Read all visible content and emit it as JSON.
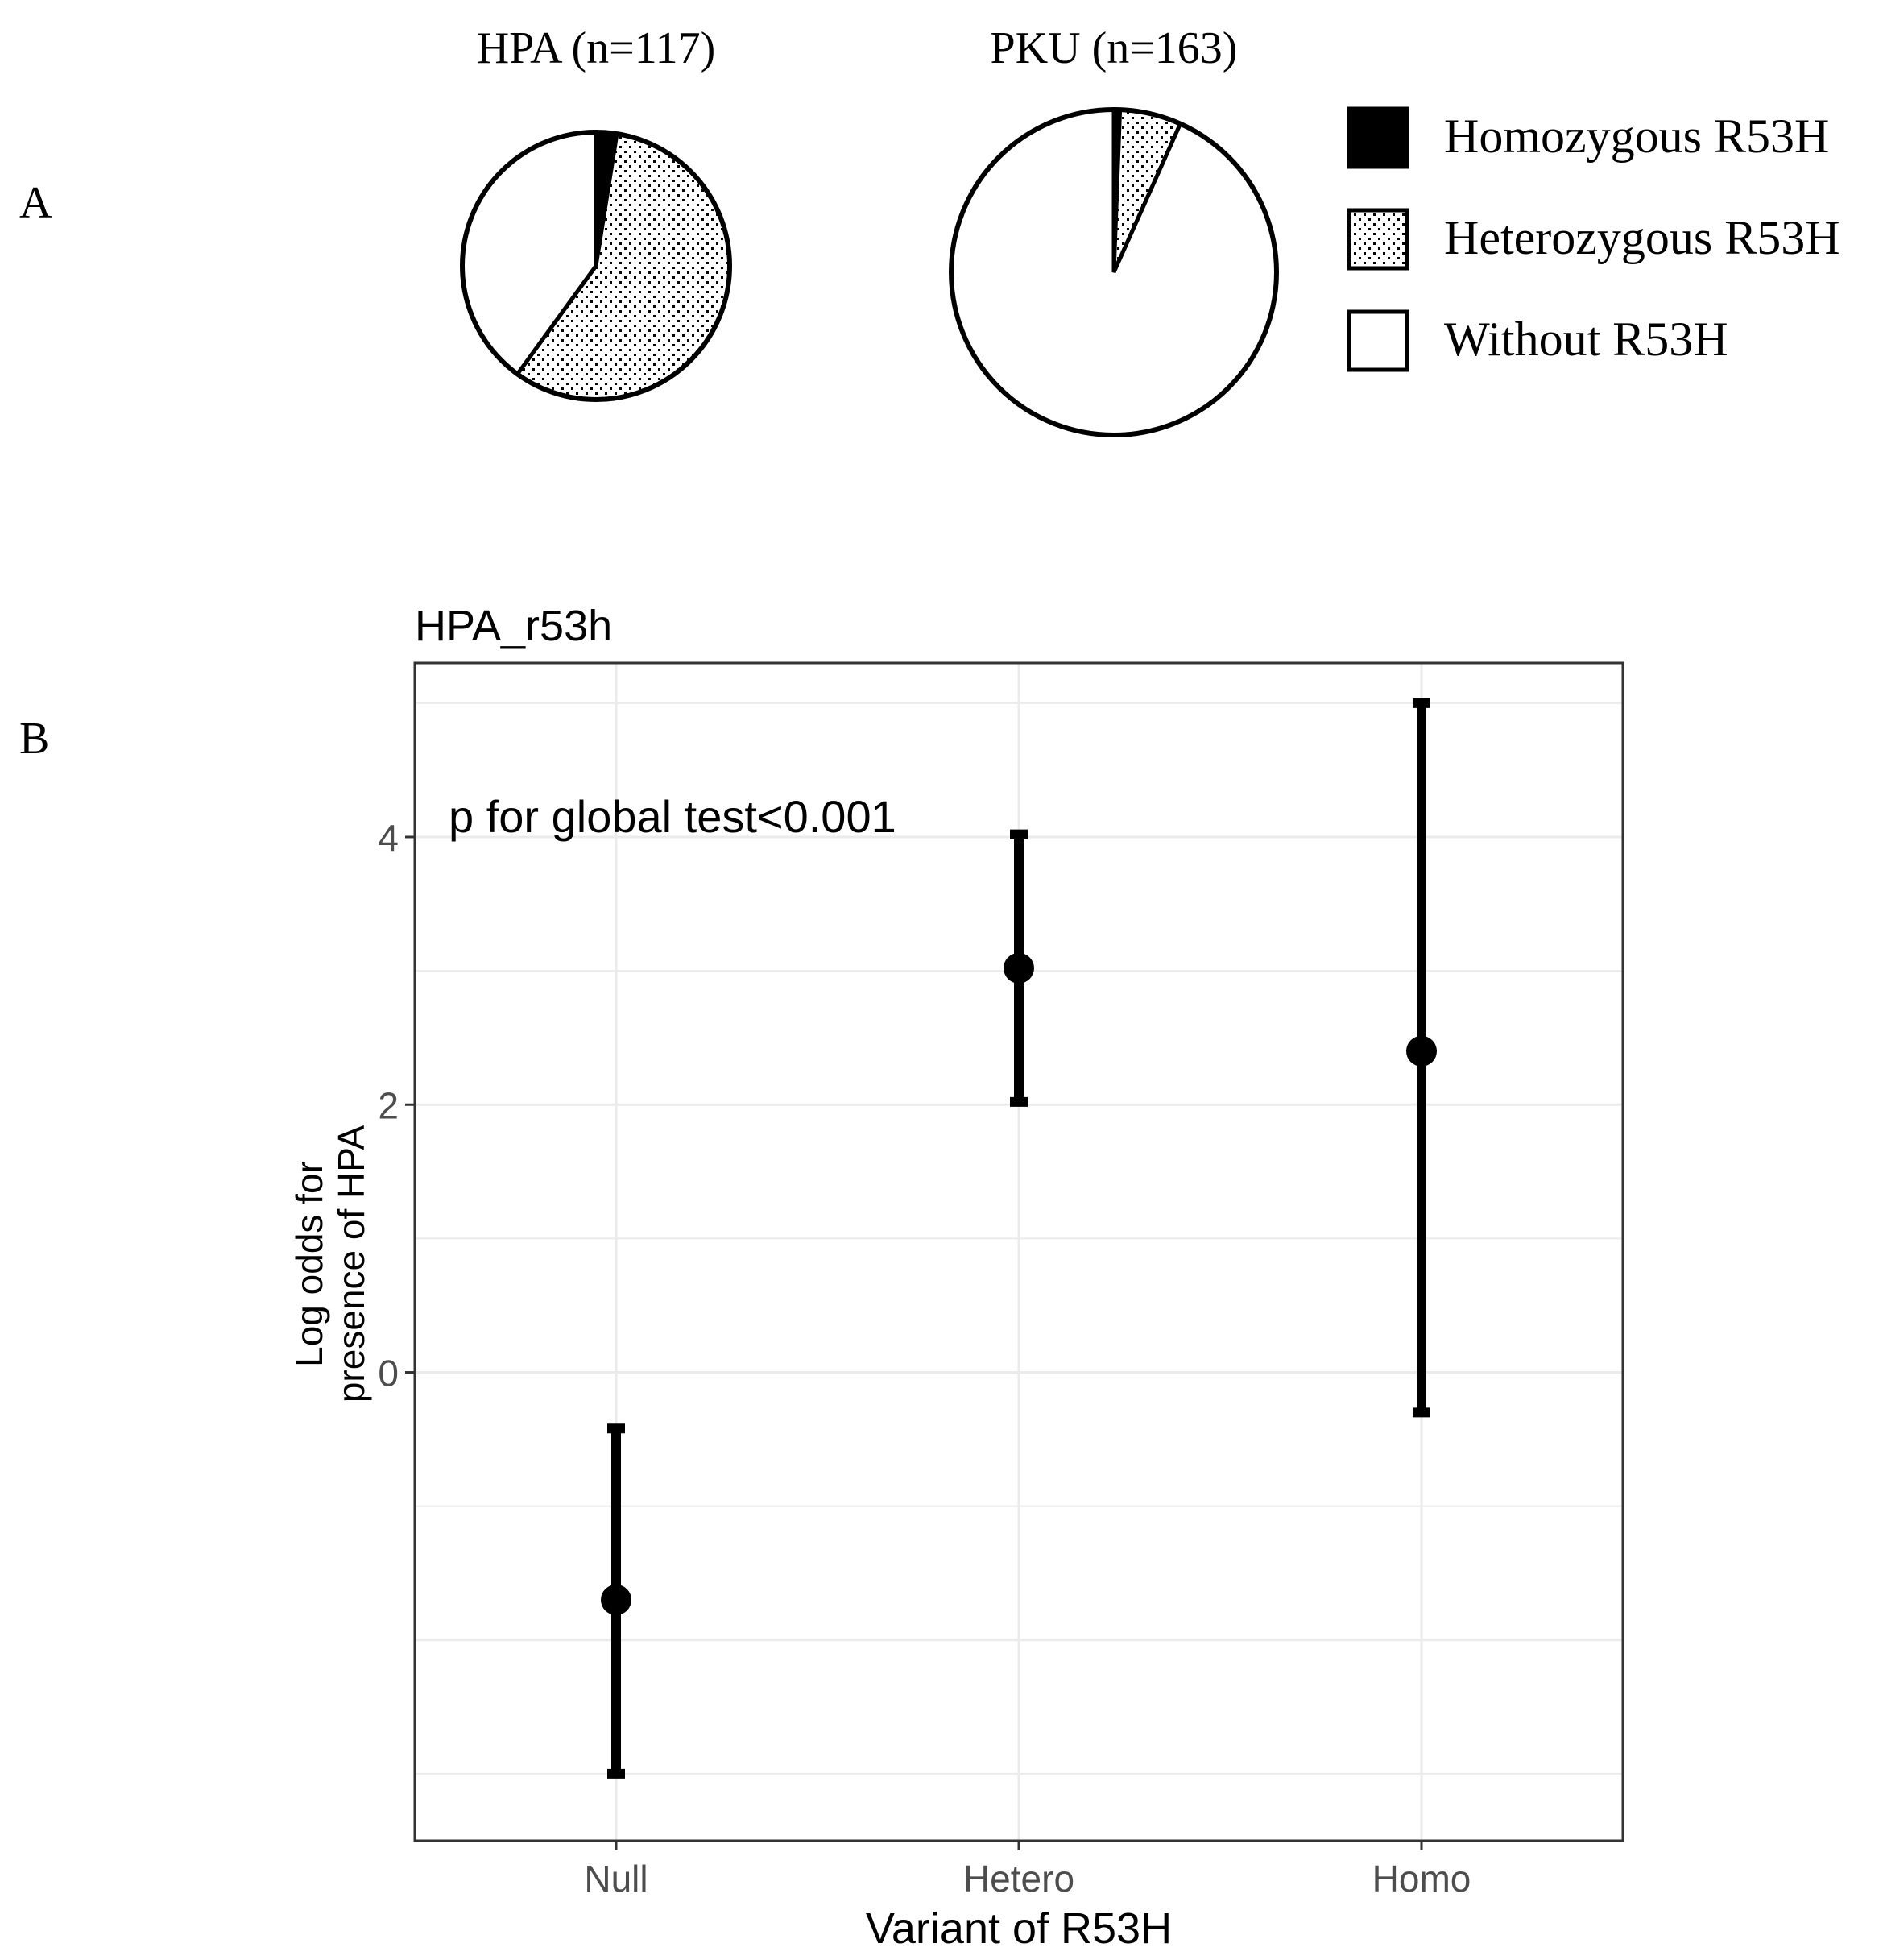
{
  "panel_labels": {
    "a": "A",
    "b": "B"
  },
  "colors": {
    "ink": "#000000",
    "paper": "#ffffff",
    "grid": "#ebebeb",
    "tick_text": "#4d4d4d",
    "panel_border": "#333333"
  },
  "chart_data": [
    {
      "type": "pie",
      "panel": "A",
      "title": "HPA (n=117)",
      "n": 117,
      "slices": [
        {
          "label": "Homozygous R53H",
          "fraction": 0.025,
          "pattern": "solid-black"
        },
        {
          "label": "Heterozygous R53H",
          "fraction": 0.575,
          "pattern": "dotted"
        },
        {
          "label": "Without R53H",
          "fraction": 0.4,
          "pattern": "white"
        }
      ]
    },
    {
      "type": "pie",
      "panel": "A",
      "title": "PKU (n=163)",
      "n": 163,
      "slices": [
        {
          "label": "Homozygous R53H",
          "fraction": 0.006,
          "pattern": "solid-black"
        },
        {
          "label": "Heterozygous R53H",
          "fraction": 0.061,
          "pattern": "dotted"
        },
        {
          "label": "Without R53H",
          "fraction": 0.933,
          "pattern": "white"
        }
      ]
    },
    {
      "type": "errorbar",
      "panel": "B",
      "title": "HPA_r53h",
      "xlabel": "Variant of R53H",
      "ylabel": [
        "Log odds for",
        "presence of HPA"
      ],
      "annotation": "p for global test<0.001",
      "categories": [
        "Null",
        "Hetero",
        "Homo"
      ],
      "estimate": [
        -1.7,
        3.02,
        2.4
      ],
      "lower": [
        -3.0,
        2.02,
        -0.3
      ],
      "upper": [
        -0.42,
        4.02,
        5.0
      ],
      "yticks": [
        0,
        2,
        4
      ],
      "ylim": [
        -3.5,
        5.3
      ],
      "grid": true
    }
  ],
  "legend": {
    "items": [
      {
        "label": "Homozygous R53H",
        "pattern": "solid-black"
      },
      {
        "label": "Heterozygous R53H",
        "pattern": "dotted"
      },
      {
        "label": "Without R53H",
        "pattern": "white"
      }
    ]
  }
}
